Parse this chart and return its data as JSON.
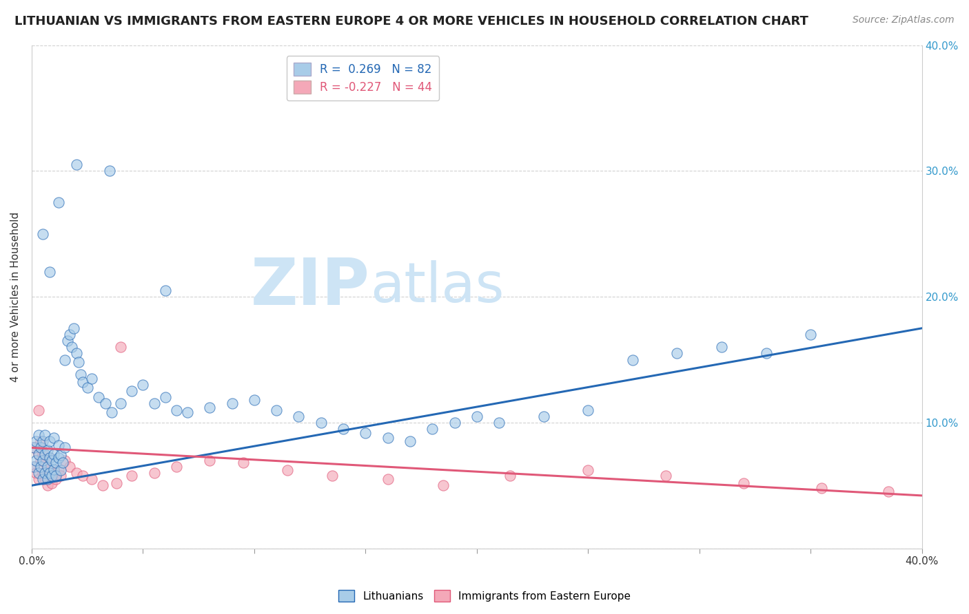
{
  "title": "LITHUANIAN VS IMMIGRANTS FROM EASTERN EUROPE 4 OR MORE VEHICLES IN HOUSEHOLD CORRELATION CHART",
  "source": "Source: ZipAtlas.com",
  "ylabel": "4 or more Vehicles in Household",
  "xmin": 0.0,
  "xmax": 0.4,
  "ymin": 0.0,
  "ymax": 0.4,
  "blue_R": 0.269,
  "blue_N": 82,
  "pink_R": -0.227,
  "pink_N": 44,
  "blue_color": "#a8cce8",
  "pink_color": "#f4a8b8",
  "blue_line_color": "#2468b4",
  "pink_line_color": "#e05878",
  "background_color": "#ffffff",
  "grid_color": "#cccccc",
  "title_fontsize": 13,
  "source_fontsize": 10,
  "legend_fontsize": 12,
  "blue_trend_y0": 0.05,
  "blue_trend_y1": 0.175,
  "pink_trend_y0": 0.08,
  "pink_trend_y1": 0.042,
  "blue_scatter_x": [
    0.001,
    0.001,
    0.002,
    0.002,
    0.003,
    0.003,
    0.003,
    0.004,
    0.004,
    0.005,
    0.005,
    0.005,
    0.006,
    0.006,
    0.006,
    0.007,
    0.007,
    0.007,
    0.008,
    0.008,
    0.008,
    0.009,
    0.009,
    0.01,
    0.01,
    0.01,
    0.011,
    0.011,
    0.012,
    0.012,
    0.013,
    0.013,
    0.014,
    0.015,
    0.015,
    0.016,
    0.017,
    0.018,
    0.019,
    0.02,
    0.021,
    0.022,
    0.023,
    0.025,
    0.027,
    0.03,
    0.033,
    0.036,
    0.04,
    0.045,
    0.05,
    0.055,
    0.06,
    0.065,
    0.07,
    0.08,
    0.09,
    0.1,
    0.11,
    0.12,
    0.13,
    0.14,
    0.15,
    0.16,
    0.17,
    0.18,
    0.19,
    0.2,
    0.21,
    0.23,
    0.25,
    0.27,
    0.29,
    0.31,
    0.33,
    0.35,
    0.005,
    0.008,
    0.012,
    0.02,
    0.035,
    0.06
  ],
  "blue_scatter_y": [
    0.065,
    0.08,
    0.07,
    0.085,
    0.06,
    0.075,
    0.09,
    0.065,
    0.08,
    0.055,
    0.07,
    0.085,
    0.06,
    0.075,
    0.09,
    0.055,
    0.065,
    0.078,
    0.06,
    0.072,
    0.085,
    0.058,
    0.07,
    0.063,
    0.075,
    0.088,
    0.058,
    0.068,
    0.072,
    0.082,
    0.062,
    0.074,
    0.068,
    0.08,
    0.15,
    0.165,
    0.17,
    0.16,
    0.175,
    0.155,
    0.148,
    0.138,
    0.132,
    0.128,
    0.135,
    0.12,
    0.115,
    0.108,
    0.115,
    0.125,
    0.13,
    0.115,
    0.12,
    0.11,
    0.108,
    0.112,
    0.115,
    0.118,
    0.11,
    0.105,
    0.1,
    0.095,
    0.092,
    0.088,
    0.085,
    0.095,
    0.1,
    0.105,
    0.1,
    0.105,
    0.11,
    0.15,
    0.155,
    0.16,
    0.155,
    0.17,
    0.25,
    0.22,
    0.275,
    0.305,
    0.3,
    0.205
  ],
  "pink_scatter_x": [
    0.001,
    0.001,
    0.002,
    0.003,
    0.003,
    0.004,
    0.004,
    0.005,
    0.005,
    0.006,
    0.006,
    0.007,
    0.007,
    0.008,
    0.008,
    0.009,
    0.01,
    0.011,
    0.012,
    0.013,
    0.015,
    0.017,
    0.02,
    0.023,
    0.027,
    0.032,
    0.038,
    0.045,
    0.055,
    0.065,
    0.08,
    0.095,
    0.115,
    0.135,
    0.16,
    0.185,
    0.215,
    0.25,
    0.285,
    0.32,
    0.355,
    0.385,
    0.003,
    0.04
  ],
  "pink_scatter_y": [
    0.065,
    0.08,
    0.06,
    0.075,
    0.055,
    0.07,
    0.085,
    0.06,
    0.075,
    0.055,
    0.068,
    0.05,
    0.065,
    0.058,
    0.072,
    0.052,
    0.06,
    0.055,
    0.062,
    0.058,
    0.07,
    0.065,
    0.06,
    0.058,
    0.055,
    0.05,
    0.052,
    0.058,
    0.06,
    0.065,
    0.07,
    0.068,
    0.062,
    0.058,
    0.055,
    0.05,
    0.058,
    0.062,
    0.058,
    0.052,
    0.048,
    0.045,
    0.11,
    0.16
  ]
}
